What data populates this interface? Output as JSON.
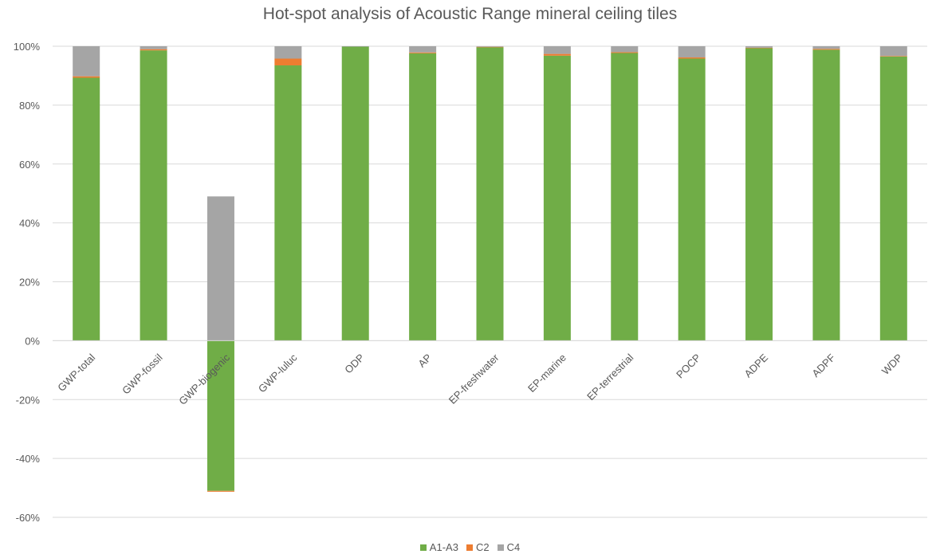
{
  "chart_data": {
    "type": "bar",
    "stacked": true,
    "title": "Hot-spot analysis of Acoustic Range mineral ceiling tiles",
    "xlabel": "",
    "ylabel": "",
    "ylim": [
      -0.6,
      1.0
    ],
    "yticks": [
      1.0,
      0.8,
      0.6,
      0.4,
      0.2,
      0.0,
      -0.2,
      -0.4,
      -0.6
    ],
    "ytick_labels": [
      "100%",
      "80%",
      "60%",
      "40%",
      "20%",
      "0%",
      "-20%",
      "-40%",
      "-60%"
    ],
    "grid": true,
    "legend_position": "bottom",
    "categories": [
      "GWP-total",
      "GWP-fossil",
      "GWP-biogenic",
      "GWP-luluc",
      "ODP",
      "AP",
      "EP-freshwater",
      "EP-marine",
      "EP-terrestrial",
      "POCP",
      "ADPE",
      "ADPF",
      "WDP"
    ],
    "series": [
      {
        "name": "A1-A3",
        "color": "#70ad47",
        "values": [
          0.893,
          0.986,
          -0.51,
          0.935,
          0.999,
          0.976,
          0.997,
          0.968,
          0.977,
          0.958,
          0.994,
          0.988,
          0.965
        ]
      },
      {
        "name": "C2",
        "color": "#ed7d31",
        "values": [
          0.005,
          0.004,
          -0.003,
          0.023,
          0.0,
          0.003,
          0.001,
          0.006,
          0.003,
          0.004,
          0.001,
          0.003,
          0.002
        ]
      },
      {
        "name": "C4",
        "color": "#a5a5a5",
        "values": [
          0.102,
          0.01,
          0.49,
          0.042,
          0.001,
          0.021,
          0.002,
          0.026,
          0.02,
          0.038,
          0.005,
          0.009,
          0.033
        ]
      }
    ]
  }
}
